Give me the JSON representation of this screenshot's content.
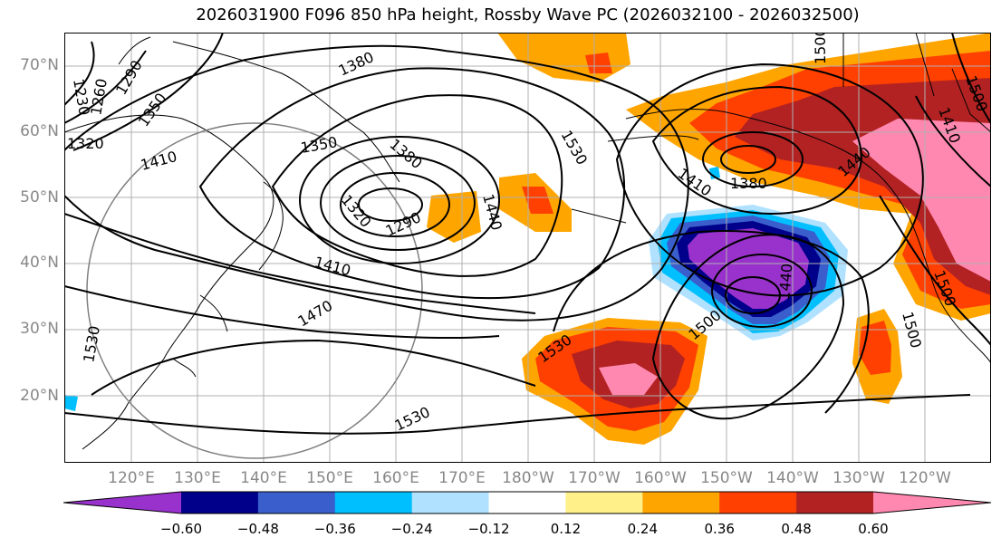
{
  "title": "2026031900 F096 850 hPa height, Rossby Wave PC (2026032100 - 2026032500)",
  "lat_labels": [
    "70°N",
    "60°N",
    "50°N",
    "40°N",
    "30°N",
    "20°N"
  ],
  "lon_labels": [
    "120°E",
    "130°E",
    "140°E",
    "150°E",
    "160°E",
    "170°E",
    "180°W",
    "170°W",
    "160°W",
    "150°W",
    "140°W",
    "130°W",
    "120°W"
  ],
  "contour_labels": [
    "1230",
    "1260",
    "1290",
    "1320",
    "1350",
    "1410",
    "1380",
    "1350",
    "1380",
    "1320",
    "1290",
    "1440",
    "1530",
    "1410",
    "1380",
    "1440",
    "1410",
    "1470",
    "1530",
    "1530",
    "1500",
    "1440",
    "1500",
    "1530",
    "1500",
    "1500",
    "1500",
    "1410",
    "1380"
  ],
  "colorbar": {
    "labels": [
      "−0.60",
      "−0.48",
      "−0.36",
      "−0.24",
      "−0.12",
      "0.12",
      "0.24",
      "0.36",
      "0.48",
      "0.60"
    ],
    "colors": [
      "#9932cc",
      "#00008b",
      "#3a5fcd",
      "#00bfff",
      "#b0e2ff",
      "#ffffff",
      "#fff08a",
      "#ffa500",
      "#ff4000",
      "#b22222",
      "#ff88b0"
    ]
  },
  "colors": {
    "purple": "#9932cc",
    "navy": "#00008b",
    "blue": "#3a5fcd",
    "sky": "#00bfff",
    "lightblue": "#b0e2ff",
    "yellow": "#fff08a",
    "orange": "#ffa500",
    "redorange": "#ff4000",
    "darkred": "#b22222",
    "pink": "#ff88b0"
  }
}
